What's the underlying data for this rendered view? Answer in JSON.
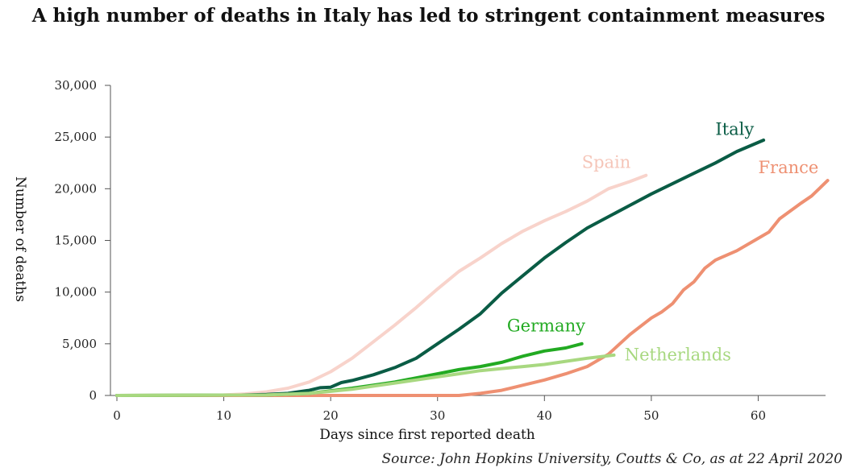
{
  "title": "A high number of deaths in Italy has led to stringent containment measures",
  "source": "Source: John Hopkins University, Coutts & Co, as at 22 April 2020",
  "chart_data": {
    "type": "line",
    "xlabel": "Days since first reported death",
    "ylabel": "Number of deaths",
    "xlim": [
      0,
      66
    ],
    "ylim": [
      0,
      30000
    ],
    "x_ticks": [
      0,
      10,
      20,
      30,
      40,
      50,
      60
    ],
    "x_tick_labels": [
      "0",
      "10",
      "20",
      "30",
      "40",
      "50",
      "60"
    ],
    "y_ticks": [
      0,
      5000,
      10000,
      15000,
      20000,
      25000,
      30000
    ],
    "y_tick_labels": [
      "0",
      "5,000",
      "10,000",
      "15,000",
      "20,000",
      "25,000",
      "30,000"
    ],
    "grid": false,
    "series": [
      {
        "name": "Spain",
        "color": "#f8d3cb",
        "points": [
          [
            0,
            0
          ],
          [
            10,
            50
          ],
          [
            12,
            150
          ],
          [
            14,
            350
          ],
          [
            16,
            700
          ],
          [
            18,
            1300
          ],
          [
            20,
            2300
          ],
          [
            22,
            3600
          ],
          [
            24,
            5200
          ],
          [
            26,
            6800
          ],
          [
            28,
            8500
          ],
          [
            30,
            10300
          ],
          [
            32,
            12000
          ],
          [
            34,
            13300
          ],
          [
            36,
            14700
          ],
          [
            38,
            15900
          ],
          [
            40,
            16900
          ],
          [
            42,
            17800
          ],
          [
            44,
            18800
          ],
          [
            46,
            20000
          ],
          [
            48,
            20700
          ],
          [
            49.5,
            21300
          ]
        ]
      },
      {
        "name": "Italy",
        "color": "#0a5c45",
        "points": [
          [
            0,
            0
          ],
          [
            10,
            0
          ],
          [
            14,
            100
          ],
          [
            16,
            200
          ],
          [
            18,
            500
          ],
          [
            19,
            750
          ],
          [
            20,
            800
          ],
          [
            21,
            1250
          ],
          [
            22,
            1450
          ],
          [
            24,
            2000
          ],
          [
            26,
            2700
          ],
          [
            28,
            3600
          ],
          [
            30,
            5000
          ],
          [
            32,
            6400
          ],
          [
            34,
            7900
          ],
          [
            36,
            9900
          ],
          [
            38,
            11600
          ],
          [
            40,
            13300
          ],
          [
            42,
            14800
          ],
          [
            44,
            16200
          ],
          [
            46,
            17300
          ],
          [
            48,
            18400
          ],
          [
            50,
            19500
          ],
          [
            52,
            20500
          ],
          [
            54,
            21500
          ],
          [
            56,
            22500
          ],
          [
            58,
            23600
          ],
          [
            60.5,
            24700
          ]
        ]
      },
      {
        "name": "France",
        "color": "#ee9072",
        "points": [
          [
            0,
            0
          ],
          [
            32,
            0
          ],
          [
            34,
            200
          ],
          [
            36,
            500
          ],
          [
            38,
            1000
          ],
          [
            40,
            1500
          ],
          [
            42,
            2100
          ],
          [
            44,
            2800
          ],
          [
            46,
            4000
          ],
          [
            48,
            5900
          ],
          [
            50,
            7500
          ],
          [
            51,
            8100
          ],
          [
            52,
            8900
          ],
          [
            53,
            10200
          ],
          [
            54,
            11000
          ],
          [
            55,
            12300
          ],
          [
            56,
            13100
          ],
          [
            58,
            14000
          ],
          [
            60,
            15200
          ],
          [
            61,
            15800
          ],
          [
            62,
            17100
          ],
          [
            64,
            18600
          ],
          [
            65,
            19300
          ],
          [
            66.5,
            20800
          ]
        ]
      },
      {
        "name": "Germany",
        "color": "#22aa22",
        "points": [
          [
            0,
            0
          ],
          [
            14,
            50
          ],
          [
            18,
            200
          ],
          [
            20,
            450
          ],
          [
            22,
            700
          ],
          [
            24,
            1000
          ],
          [
            26,
            1300
          ],
          [
            28,
            1700
          ],
          [
            30,
            2100
          ],
          [
            32,
            2500
          ],
          [
            34,
            2800
          ],
          [
            36,
            3200
          ],
          [
            38,
            3800
          ],
          [
            40,
            4300
          ],
          [
            42,
            4600
          ],
          [
            43.5,
            5000
          ]
        ]
      },
      {
        "name": "Netherlands",
        "color": "#a8d880",
        "points": [
          [
            0,
            0
          ],
          [
            14,
            50
          ],
          [
            18,
            200
          ],
          [
            20,
            400
          ],
          [
            22,
            600
          ],
          [
            24,
            900
          ],
          [
            26,
            1200
          ],
          [
            28,
            1500
          ],
          [
            30,
            1800
          ],
          [
            32,
            2100
          ],
          [
            34,
            2400
          ],
          [
            36,
            2600
          ],
          [
            38,
            2800
          ],
          [
            40,
            3000
          ],
          [
            42,
            3300
          ],
          [
            44,
            3600
          ],
          [
            46.5,
            3900
          ]
        ]
      }
    ],
    "labels": [
      {
        "text": "Spain",
        "series": "Spain",
        "at": [
          43.5,
          22000
        ],
        "color": "#f5c5b8"
      },
      {
        "text": "Italy",
        "series": "Italy",
        "at": [
          56,
          25200
        ],
        "color": "#0a5c45"
      },
      {
        "text": "France",
        "series": "France",
        "at": [
          60,
          21500
        ],
        "color": "#ee9072"
      },
      {
        "text": "Germany",
        "series": "Germany",
        "at": [
          36.5,
          6200
        ],
        "color": "#22aa22"
      },
      {
        "text": "Netherlands",
        "series": "Netherlands",
        "at": [
          47.5,
          3400
        ],
        "color": "#a8d880"
      }
    ]
  }
}
